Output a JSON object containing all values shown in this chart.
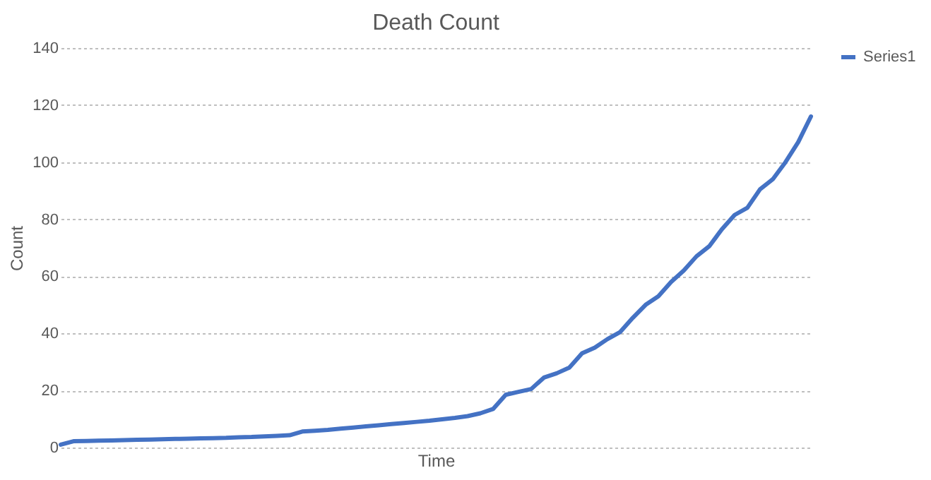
{
  "chart_data": {
    "type": "line",
    "title": "Death Count",
    "xlabel": "Time",
    "ylabel": "Count",
    "categories": [
      null,
      null,
      null,
      null,
      null,
      null,
      null,
      null,
      null,
      null,
      null,
      null,
      null,
      null,
      null,
      null,
      null,
      null,
      null,
      null,
      null,
      null,
      null,
      null,
      null,
      null,
      null,
      null,
      null,
      null,
      null,
      null,
      null,
      null,
      null,
      null,
      null,
      null,
      null,
      null,
      null,
      null,
      null,
      null,
      null,
      null,
      null,
      null,
      null,
      null,
      null,
      null,
      null,
      null,
      null,
      null,
      null,
      null,
      null,
      null
    ],
    "series": [
      {
        "name": "Series1",
        "color": "#4472c4",
        "values": [
          1,
          2.2,
          2.3,
          2.4,
          2.5,
          2.6,
          2.7,
          2.8,
          2.9,
          3,
          3.1,
          3.2,
          3.3,
          3.4,
          3.6,
          3.7,
          3.9,
          4.1,
          4.3,
          5.6,
          5.9,
          6.2,
          6.6,
          7,
          7.4,
          7.8,
          8.2,
          8.6,
          9,
          9.4,
          9.9,
          10.4,
          11,
          12,
          13.5,
          18.5,
          19.5,
          20.5,
          24.5,
          26,
          28,
          33,
          35,
          38,
          40.5,
          45.5,
          50,
          53,
          58,
          62,
          67,
          70.5,
          76.5,
          81.5,
          84,
          90.5,
          94,
          100,
          107,
          116
        ]
      }
    ],
    "ylim": [
      0,
      140
    ],
    "yticks": [
      0,
      20,
      40,
      60,
      80,
      100,
      120,
      140
    ],
    "grid": "y",
    "legend": "right",
    "marker": "none",
    "line_style": "solid"
  }
}
